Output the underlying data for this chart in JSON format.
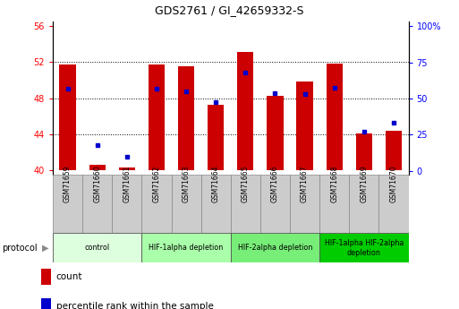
{
  "title": "GDS2761 / GI_42659332-S",
  "samples": [
    "GSM71659",
    "GSM71660",
    "GSM71661",
    "GSM71662",
    "GSM71663",
    "GSM71664",
    "GSM71665",
    "GSM71666",
    "GSM71667",
    "GSM71668",
    "GSM71669",
    "GSM71670"
  ],
  "bar_heights": [
    51.7,
    40.6,
    40.3,
    51.7,
    51.5,
    47.3,
    53.1,
    48.3,
    49.8,
    51.8,
    44.1,
    44.4
  ],
  "blue_values": [
    49.0,
    42.8,
    41.5,
    49.0,
    48.8,
    47.6,
    50.8,
    48.6,
    48.5,
    49.1,
    44.3,
    45.3
  ],
  "bar_base": 40,
  "ylim_left": [
    39.5,
    56.5
  ],
  "ylim_right": [
    -2.5,
    103.125
  ],
  "yticks_left": [
    40,
    44,
    48,
    52,
    56
  ],
  "yticks_right": [
    0,
    25,
    50,
    75,
    100
  ],
  "ytick_labels_left": [
    "40",
    "44",
    "48",
    "52",
    "56"
  ],
  "ytick_labels_right": [
    "0",
    "25",
    "50",
    "75",
    "100%"
  ],
  "bar_color": "#cc0000",
  "blue_color": "#0000cc",
  "protocol_groups": [
    {
      "label": "control",
      "start": 0,
      "end": 3,
      "color": "#ddffdd"
    },
    {
      "label": "HIF-1alpha depletion",
      "start": 3,
      "end": 6,
      "color": "#aaffaa"
    },
    {
      "label": "HIF-2alpha depletion",
      "start": 6,
      "end": 9,
      "color": "#77ee77"
    },
    {
      "label": "HIF-1alpha HIF-2alpha\ndepletion",
      "start": 9,
      "end": 12,
      "color": "#00cc00"
    }
  ],
  "protocol_label": "protocol",
  "legend_count_label": "count",
  "legend_percentile_label": "percentile rank within the sample"
}
